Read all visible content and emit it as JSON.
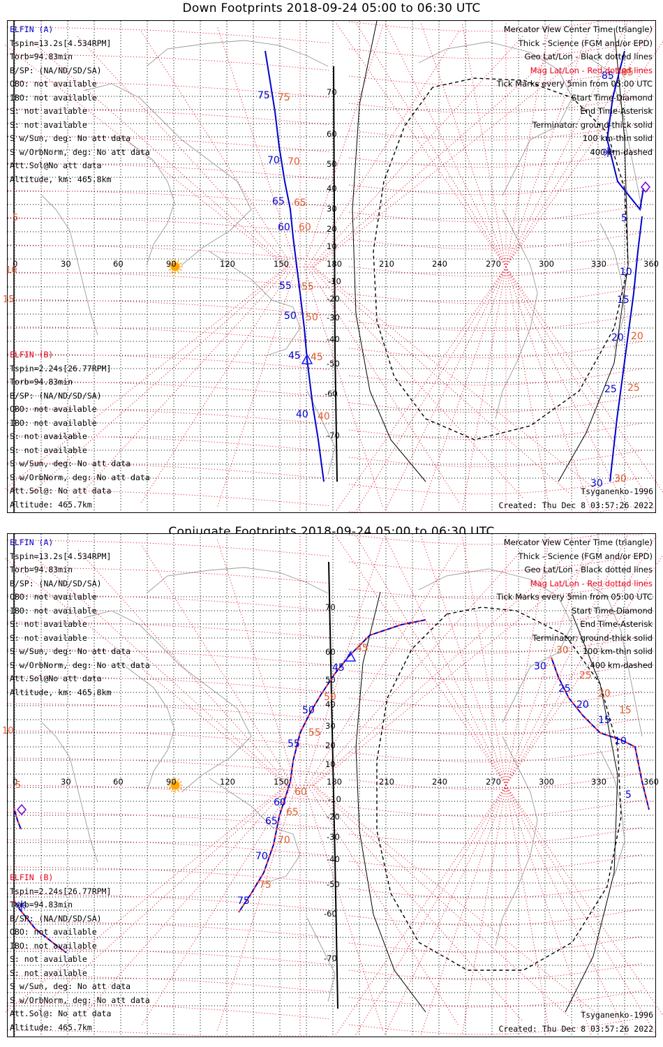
{
  "panels": [
    {
      "title": "Down Footprints 2018-09-24 05:00 to 06:30 UTC",
      "sat_a": {
        "name": "ELFIN (A)",
        "lines": [
          "Tspin=13.2s[4.534RPM]",
          "Torb=94.83min",
          "B/SP: (NA/ND/SD/SA)",
          "OBO: not available",
          "IBO: not available",
          "S: not available",
          "S: not available",
          "S w/Sun, deg: No att data",
          "S w/OrbNorm, deg: No att data",
          "Att.Sol@No att data",
          "Altitude, km: 465.8km"
        ]
      },
      "sat_b": {
        "name": "ELFIN (B)",
        "lines": [
          "Tspin=2.24s[26.77RPM]",
          "Torb=94.83min",
          "B/SP: (NA/ND/SD/SA)",
          "OBO: not available",
          "IBO: not available",
          "S: not available",
          "S: not available",
          "S w/Sun, deg: No att data",
          "S w/OrbNorm, deg: No att data",
          "Att.Sol@: No att data",
          "Altitude: 465.7km"
        ]
      },
      "legend": [
        "Mercator View Center Time (triangle)",
        "Thick - Science (FGM and/or EPD)",
        "Geo Lat/Lon - Black dotted lines",
        "Mag Lat/Lon - Red dotted lines",
        "Tick Marks every 5min from 05:00 UTC",
        "Start Time-Diamond",
        "End Time-Asterisk",
        "Terminator: ground-thick solid",
        "100 km-thin solid",
        "400 km-dashed"
      ],
      "model": "Tsyganenko-1996",
      "created": "Created: Thu Dec  8 03:57:26 2022",
      "lon_ticks": [
        "0",
        "30",
        "60",
        "90",
        "120",
        "150",
        "180",
        "210",
        "240",
        "270",
        "300",
        "330",
        "360"
      ],
      "lat_ticks": [
        "70",
        "60",
        "50",
        "40",
        "30",
        "20",
        "10",
        "-10",
        "-20",
        "-30",
        "-40",
        "-50",
        "-60",
        "-70"
      ],
      "mag_edge_labels": [
        "5",
        "10",
        "15"
      ],
      "track_a": {
        "blue_labels": [
          "75",
          "70",
          "65",
          "60",
          "55",
          "50",
          "45",
          "40"
        ],
        "red_labels": [
          "75",
          "70",
          "65",
          "60",
          "55",
          "50",
          "45",
          "40"
        ],
        "style": "solid"
      },
      "track_b": {
        "blue_labels": [
          "85",
          "5",
          "10",
          "15",
          "20",
          "25",
          "30"
        ],
        "red_labels": [
          "85",
          "20",
          "25",
          "30"
        ],
        "style": "solid"
      }
    },
    {
      "title": "Conjugate Footprints 2018-09-24 05:00 to 06:30 UTC",
      "sat_a": {
        "name": "ELFIN (A)",
        "lines": [
          "Tspin=13.2s[4.534RPM]",
          "Torb=94.83min",
          "B/SP: (NA/ND/SD/SA)",
          "OBO: not available",
          "IBO: not available",
          "S: not available",
          "S: not available",
          "S w/Sun, deg: No att data",
          "S w/OrbNorm, deg: No att data",
          "Att.Sol@No att data",
          "Altitude, km: 465.8km"
        ]
      },
      "sat_b": {
        "name": "ELFIN (B)",
        "lines": [
          "Tspin=2.24s[26.77RPM]",
          "Torb=94.83min",
          "B/SP: (NA/ND/SD/SA)",
          "OBO: not available",
          "IBO: not available",
          "S: not available",
          "S: not available",
          "S w/Sun, deg: No att data",
          "S w/OrbNorm, deg: No att data",
          "Att.Sol@: No att data",
          "Altitude: 465.7km"
        ]
      },
      "legend": [
        "Mercator View Center Time (triangle)",
        "Thick - Science (FGM and/or EPD)",
        "Geo Lat/Lon - Black dotted lines",
        "Mag Lat/Lon - Red dotted lines",
        "Tick Marks every 5min from 05:00 UTC",
        "Start Time-Diamond",
        "End Time-Asterisk",
        "Terminator: ground-thick solid",
        "100 km-thin solid",
        "400 km-dashed"
      ],
      "model": "Tsyganenko-1996",
      "created": "Created: Thu Dec  8 03:57:26 2022",
      "lon_ticks": [
        "0",
        "30",
        "60",
        "90",
        "120",
        "150",
        "180",
        "210",
        "240",
        "270",
        "300",
        "330",
        "360"
      ],
      "lat_ticks": [
        "70",
        "60",
        "50",
        "40",
        "30",
        "20",
        "10",
        "-10",
        "-20",
        "-30",
        "-40",
        "-50",
        "-60",
        "-70"
      ],
      "mag_edge_labels": [
        "10",
        "5"
      ],
      "track_a": {
        "blue_labels": [
          "45",
          "50",
          "55",
          "60",
          "65",
          "70",
          "75"
        ],
        "red_labels": [
          "45",
          "50",
          "55",
          "60",
          "65",
          "70",
          "75"
        ],
        "style": "dashed"
      },
      "track_b": {
        "blue_labels": [
          "30",
          "25",
          "20",
          "15",
          "10",
          "5"
        ],
        "red_labels": [
          "30",
          "25",
          "20",
          "15"
        ],
        "style": "dashed"
      }
    }
  ],
  "colors": {
    "track": "#0000cc",
    "mag": "#e8001a",
    "mag_label": "#e05a30",
    "coast": "#9a9a9a",
    "grid": "#000000",
    "sun": "#ffa500"
  }
}
